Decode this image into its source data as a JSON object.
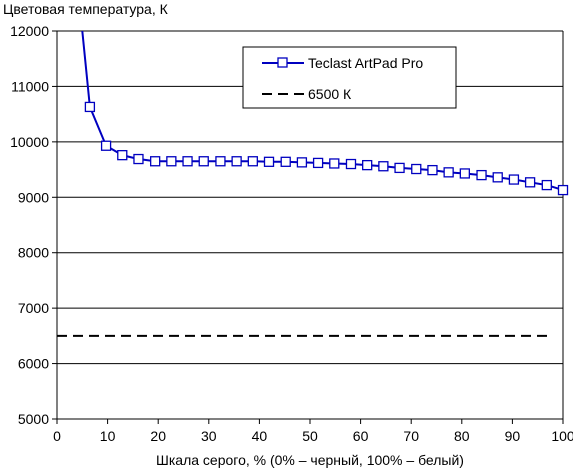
{
  "chart_data": {
    "type": "line",
    "title": "",
    "ylabel": "Цветовая температура, К",
    "xlabel": "Шкала серого, % (0% – черный, 100% – белый)",
    "xlim": [
      0,
      100
    ],
    "ylim": [
      5000,
      12000
    ],
    "xticks": [
      0,
      10,
      20,
      30,
      40,
      50,
      60,
      70,
      80,
      90,
      100
    ],
    "yticks": [
      5000,
      6000,
      7000,
      8000,
      9000,
      10000,
      11000,
      12000
    ],
    "grid": "horizontal",
    "legend_position": "top-right",
    "series": [
      {
        "name": "Teclast ArtPad Pro",
        "color": "#0000c0",
        "marker": "open-square",
        "line": "solid",
        "x": [
          5,
          6.5,
          9.7,
          12.9,
          16.1,
          19.4,
          22.6,
          25.8,
          29,
          32.3,
          35.5,
          38.7,
          41.9,
          45.2,
          48.4,
          51.6,
          54.8,
          58.1,
          61.3,
          64.5,
          67.7,
          71,
          74.2,
          77.4,
          80.6,
          83.9,
          87.1,
          90.3,
          93.5,
          96.8,
          100
        ],
        "values": [
          12000,
          10630,
          9930,
          9760,
          9690,
          9650,
          9650,
          9650,
          9650,
          9650,
          9650,
          9650,
          9640,
          9640,
          9630,
          9620,
          9610,
          9600,
          9580,
          9560,
          9530,
          9510,
          9490,
          9450,
          9430,
          9400,
          9360,
          9320,
          9270,
          9220,
          9130
        ]
      },
      {
        "name": "6500 К",
        "color": "#000000",
        "line": "dashed",
        "marker": "none",
        "x": [
          0,
          100
        ],
        "values": [
          6500,
          6500
        ]
      }
    ]
  }
}
